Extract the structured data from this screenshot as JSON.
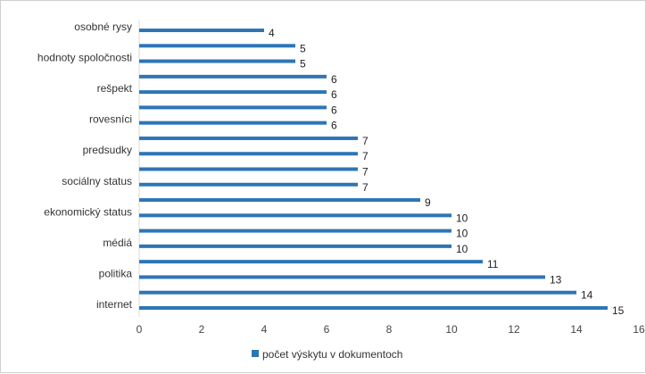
{
  "chart_data": {
    "type": "bar",
    "orientation": "horizontal",
    "categories": [
      "osobné rysy",
      "",
      "hodnoty spoločnosti",
      "",
      "rešpekt",
      "",
      "rovesníci",
      "",
      "predsudky",
      "",
      "sociálny status",
      "",
      "ekonomický status",
      "",
      "médiá",
      "",
      "politika",
      "",
      "internet"
    ],
    "series": [
      {
        "name": "počet výskytu v dokumentoch",
        "values": [
          4,
          5,
          5,
          6,
          6,
          6,
          6,
          7,
          7,
          7,
          7,
          9,
          10,
          10,
          10,
          11,
          13,
          14,
          15
        ]
      }
    ],
    "x_ticks": [
      "0",
      "2",
      "4",
      "6",
      "8",
      "10",
      "12",
      "14",
      "16"
    ],
    "xlim": [
      0,
      16
    ],
    "grid": false,
    "legend_position": "bottom",
    "bar_color": "#2e75b6",
    "data_labels": true
  }
}
